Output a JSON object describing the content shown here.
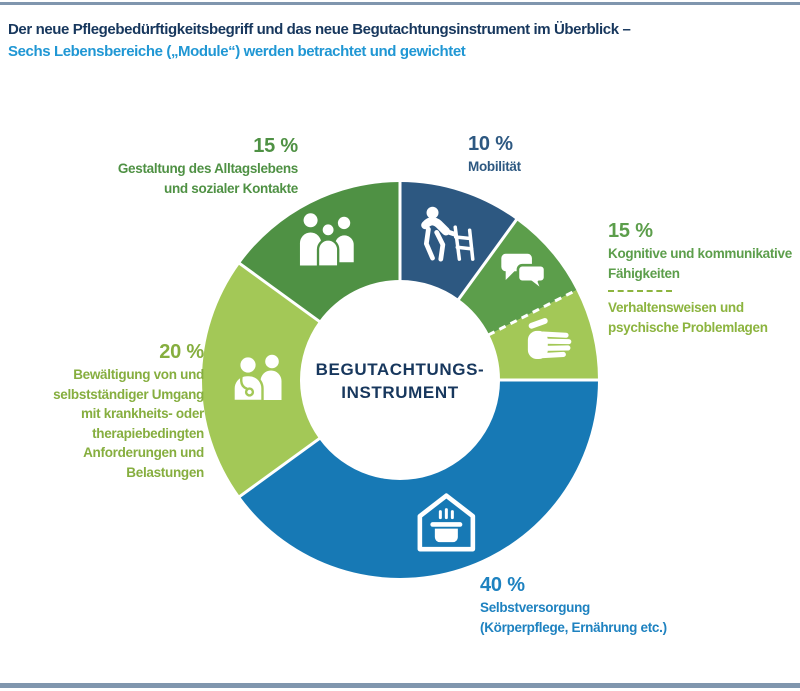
{
  "header": {
    "line1": "Der neue Pflegebedürftigkeitsbegriff und das neue Begutachtungsinstrument im Überblick –",
    "line2": "Sechs Lebensbereiche („Module“) werden betrachtet und gewichtet"
  },
  "theme": {
    "title_navy": "#17375D",
    "title_blue": "#2097D4",
    "rule_color": "#8096AE",
    "background": "#FFFFFF",
    "donut_hole": "#FFFFFF"
  },
  "chart_data": {
    "type": "pie",
    "subtype": "donut",
    "center_label": "BEGUTACHTUNGS-\nINSTRUMENT",
    "unit": "percent",
    "legend_position": "around-chart",
    "slices": [
      {
        "id": "mobilitaet",
        "name": "Mobilität",
        "value": 10,
        "display_pct": "10 %",
        "color": "#2D5881",
        "icon": "person-with-walker-icon"
      },
      {
        "id": "kognitive-faehigkeiten",
        "name": "Kognitive und kommunikative Fähigkeiten",
        "value": 7.5,
        "display_pct": "15 %",
        "color": "#5C9E4B",
        "icon": "speech-bubbles-icon"
      },
      {
        "id": "verhaltensweisen",
        "name": "Verhaltensweisen und psychische Problemlagen",
        "value": 7.5,
        "display_pct": "15 %",
        "color": "#A3C857",
        "icon": "hand-icon",
        "boundary_before": "dashed"
      },
      {
        "id": "selbstversorgung",
        "name": "Selbstversorgung (Körperpflege, Ernährung etc.)",
        "value": 40,
        "display_pct": "40 %",
        "color": "#1779B5",
        "icon": "house-pot-icon"
      },
      {
        "id": "bewaeltigung",
        "name": "Bewältigung von und selbstständiger Umgang mit krankheits- oder therapiebedingten Anforderungen und Belastungen",
        "value": 20,
        "display_pct": "20 %",
        "color": "#A3C857",
        "icon": "doctor-patient-icon"
      },
      {
        "id": "gestaltung",
        "name": "Gestaltung des Alltagslebens und sozialer Kontakte",
        "value": 15,
        "display_pct": "15 %",
        "color": "#4F9144",
        "icon": "people-group-icon"
      }
    ]
  },
  "callouts": {
    "gestaltung": {
      "pct": "15 %",
      "text": "Gestaltung des Alltagslebens\nund sozialer Kontakte",
      "color": "#4F9144"
    },
    "mobilitaet": {
      "pct": "10 %",
      "text": "Mobilität",
      "color": "#2D5881"
    },
    "kognitive": {
      "pct": "15 %",
      "text_top": "Kognitive und kommunikative\nFähigkeiten",
      "text_bottom": "Verhaltensweisen und\npsychische Problemlagen",
      "color_top": "#5C9E4B",
      "color_bottom": "#8CB43F"
    },
    "bewaeltigung": {
      "pct": "20 %",
      "text": "Bewältigung von und\nselbstständiger Umgang\nmit krankheits- oder\ntherapiebedingten\nAnforderungen und\nBelastungen",
      "color": "#86AE3F"
    },
    "selbstversorgung": {
      "pct": "40 %",
      "text": "Selbstversorgung\n(Körperpflege, Ernährung etc.)",
      "color": "#1E82C0"
    }
  }
}
